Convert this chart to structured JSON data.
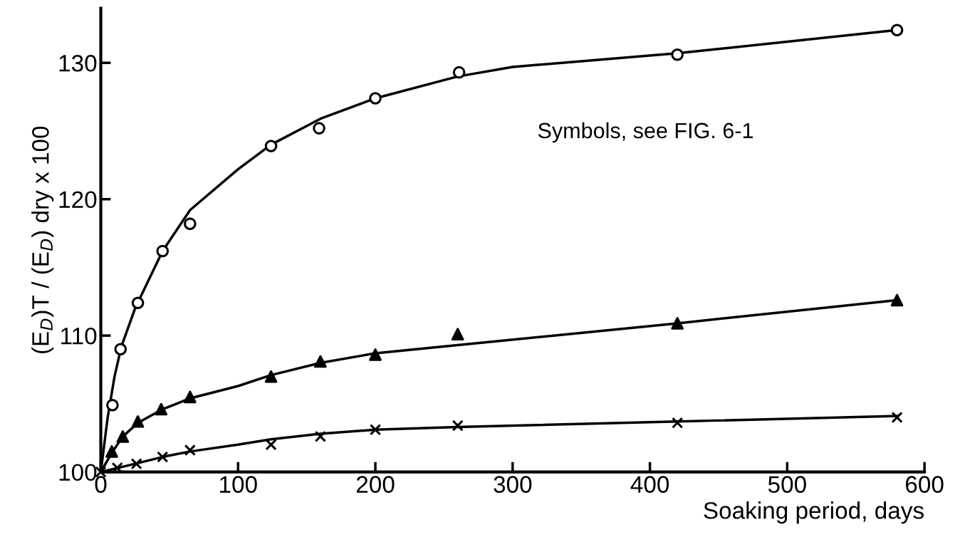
{
  "chart_data": {
    "type": "scatter",
    "xlabel": "Soaking period, days",
    "ylabel": "(E$_{D}$)T / (E$_{D}$) dry x 100",
    "annotations": [
      "Symbols, see FIG. 6-1"
    ],
    "xlim": [
      0,
      600
    ],
    "xticks": [
      0,
      100,
      200,
      300,
      400,
      500,
      600
    ],
    "ylim": [
      100,
      134
    ],
    "yticks": [
      100,
      110,
      120,
      130
    ],
    "grid": false,
    "legend": false,
    "series": [
      {
        "marker": "circle",
        "color": "#000000",
        "x": [
          8.5,
          14.4,
          27,
          45,
          65,
          124,
          159,
          200,
          261,
          420,
          580
        ],
        "values": [
          104.9,
          109.0,
          112.4,
          116.2,
          118.2,
          123.9,
          125.2,
          127.4,
          129.3,
          130.6,
          132.4
        ]
      },
      {
        "marker": "triangle",
        "color": "#000000",
        "x": [
          8,
          16,
          27,
          44,
          65,
          124,
          160,
          200,
          260,
          420,
          580
        ],
        "values": [
          101.5,
          102.6,
          103.7,
          104.6,
          105.5,
          107.0,
          108.1,
          108.6,
          110.1,
          110.9,
          112.6
        ]
      },
      {
        "marker": "cross",
        "color": "#000000",
        "x": [
          0,
          12,
          26,
          45,
          65,
          124,
          160,
          200,
          260,
          420,
          580
        ],
        "values": [
          100.0,
          100.3,
          100.6,
          101.1,
          101.6,
          102.0,
          102.6,
          103.1,
          103.4,
          103.6,
          104.0
        ]
      },
      {
        "type": "line",
        "marker": "none",
        "line_style": "solid",
        "color": "#000000",
        "x": [
          0,
          5,
          10,
          15,
          25,
          45,
          65,
          100,
          124,
          160,
          200,
          260,
          300,
          420,
          580
        ],
        "values": [
          100,
          104,
          107,
          109.2,
          112,
          116.2,
          119.2,
          122.2,
          124,
          125.9,
          127.4,
          129,
          129.7,
          130.7,
          132.4
        ]
      },
      {
        "type": "line",
        "marker": "none",
        "line_style": "solid",
        "color": "#000000",
        "x": [
          0,
          8,
          16,
          27,
          45,
          65,
          100,
          124,
          160,
          200,
          260,
          420,
          580
        ],
        "values": [
          100,
          101.4,
          102.6,
          103.6,
          104.6,
          105.4,
          106.3,
          107.1,
          108,
          108.7,
          109.3,
          110.9,
          112.6
        ]
      },
      {
        "type": "line",
        "marker": "none",
        "line_style": "solid",
        "color": "#000000",
        "x": [
          0,
          25,
          45,
          65,
          100,
          124,
          160,
          200,
          260,
          420,
          580
        ],
        "values": [
          100,
          100.6,
          101.1,
          101.5,
          102.0,
          102.4,
          102.8,
          103.1,
          103.3,
          103.7,
          104.1
        ]
      }
    ]
  }
}
